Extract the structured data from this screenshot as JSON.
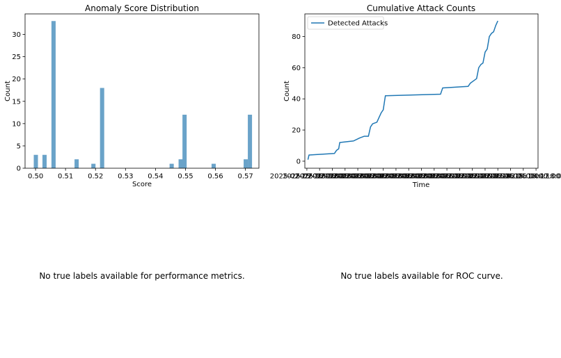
{
  "chart_data": [
    {
      "type": "bar",
      "title": "Anomaly Score Distribution",
      "xlabel": "Score",
      "ylabel": "Count",
      "xlim": [
        0.4965,
        0.5745
      ],
      "ylim": [
        0,
        34.6
      ],
      "xticks": [
        "0.50",
        "0.51",
        "0.52",
        "0.53",
        "0.54",
        "0.55",
        "0.56",
        "0.57"
      ],
      "yticks": [
        "0",
        "5",
        "10",
        "15",
        "20",
        "25",
        "30"
      ],
      "bin_width": 0.0014,
      "bars": [
        {
          "x": 0.5001,
          "count": 3
        },
        {
          "x": 0.503,
          "count": 3
        },
        {
          "x": 0.506,
          "count": 33
        },
        {
          "x": 0.5137,
          "count": 2
        },
        {
          "x": 0.5193,
          "count": 1
        },
        {
          "x": 0.5222,
          "count": 18
        },
        {
          "x": 0.5454,
          "count": 1
        },
        {
          "x": 0.5484,
          "count": 2
        },
        {
          "x": 0.5497,
          "count": 12
        },
        {
          "x": 0.5594,
          "count": 1
        },
        {
          "x": 0.5701,
          "count": 2
        },
        {
          "x": 0.5715,
          "count": 12
        }
      ],
      "color": "#6aa3c9"
    },
    {
      "type": "line",
      "title": "Cumulative Attack Counts",
      "xlabel": "Time",
      "ylabel": "Count",
      "ylim": [
        -4.5,
        94.5
      ],
      "yticks": [
        "0",
        "20",
        "40",
        "60",
        "80"
      ],
      "xticks": [
        "2025-02-25 04:00:00",
        "2025-02-25 04:01:00",
        "2025-02-25 04:02:00",
        "2025-02-25 04:03:00",
        "2025-02-25 04:04:00",
        "2025-02-25 04:05:00",
        "2025-02-25 04:06:00",
        "2025-02-25 04:07:00",
        "2025-02-25 04:08:00",
        "2025-02-25 04:09:00",
        "2025-02-25 04:10:00",
        "2025-02-25 04:11:00",
        "2025-02-25 04:12:00",
        "2025-02-25 04:13:00",
        "2025-02-25 04:14:00",
        "2025-02-25 04:15:00",
        "2025-02-25 04:16:00",
        "2025-02-25 04:17:00",
        "2025-02-25 04:18:00"
      ],
      "last_tick_label": "04:18:00",
      "legend": {
        "label": "Detected Attacks",
        "placement": "top-left"
      },
      "color": "#1f77b4",
      "series": [
        {
          "name": "Detected Attacks",
          "x": [
            "2025-02-25 04:00:05",
            "2025-02-25 04:00:10",
            "2025-02-25 04:02:10",
            "2025-02-25 04:02:20",
            "2025-02-25 04:02:30",
            "2025-02-25 04:02:35",
            "2025-02-25 04:03:40",
            "2025-02-25 04:04:10",
            "2025-02-25 04:04:30",
            "2025-02-25 04:04:50",
            "2025-02-25 04:05:00",
            "2025-02-25 04:05:05",
            "2025-02-25 04:05:10",
            "2025-02-25 04:05:30",
            "2025-02-25 04:05:40",
            "2025-02-25 04:05:50",
            "2025-02-25 04:06:00",
            "2025-02-25 04:06:10",
            "2025-02-25 04:10:30",
            "2025-02-25 04:10:40",
            "2025-02-25 04:12:40",
            "2025-02-25 04:12:50",
            "2025-02-25 04:13:10",
            "2025-02-25 04:13:20",
            "2025-02-25 04:13:30",
            "2025-02-25 04:13:40",
            "2025-02-25 04:13:50",
            "2025-02-25 04:14:00",
            "2025-02-25 04:14:10",
            "2025-02-25 04:14:20",
            "2025-02-25 04:14:30",
            "2025-02-25 04:14:40",
            "2025-02-25 04:14:50",
            "2025-02-25 04:15:00"
          ],
          "values": [
            1,
            4,
            5,
            7,
            8,
            12,
            13,
            15,
            16,
            16,
            22,
            23,
            24,
            25,
            28,
            31,
            33,
            42,
            43,
            47,
            48,
            50,
            52,
            53,
            60,
            62,
            63,
            70,
            72,
            80,
            82,
            83,
            87,
            90
          ]
        }
      ]
    }
  ],
  "messages": {
    "performance": "No true labels available for performance metrics.",
    "roc": "No true labels available for ROC curve."
  }
}
